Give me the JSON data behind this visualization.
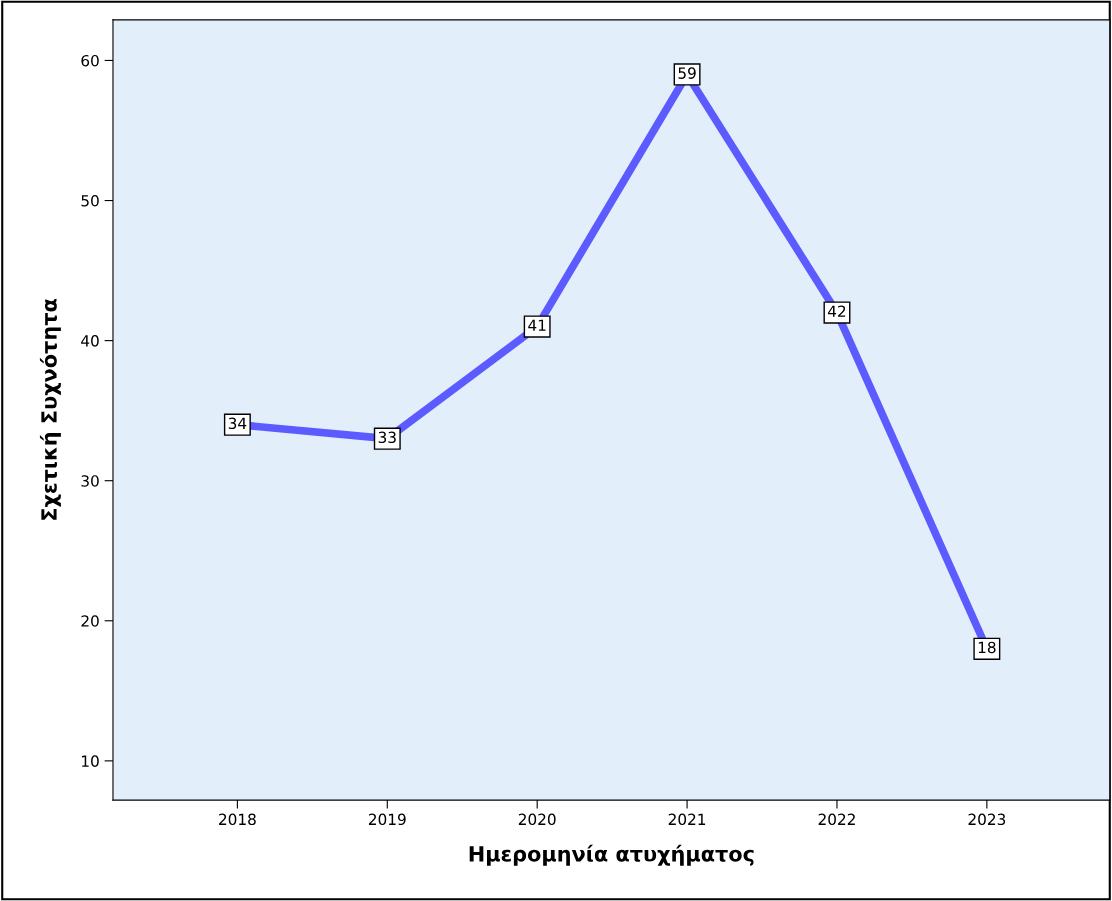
{
  "chart_data": {
    "type": "line",
    "xlabel": "Ημερομηνία ατυχήματος",
    "ylabel": "Σχετική Συχνότητα",
    "categories": [
      "2018",
      "2019",
      "2020",
      "2021",
      "2022",
      "2023"
    ],
    "series": [
      {
        "color": "#5b5bff",
        "values": [
          34,
          33,
          41,
          59,
          42,
          18
        ]
      }
    ],
    "ylim": [
      7.2,
      62.9
    ],
    "yticks": [
      10,
      20,
      30,
      40,
      50,
      60
    ],
    "data_labels": true,
    "grid": false,
    "legend": false,
    "marker": "square",
    "line_style": "solid"
  }
}
